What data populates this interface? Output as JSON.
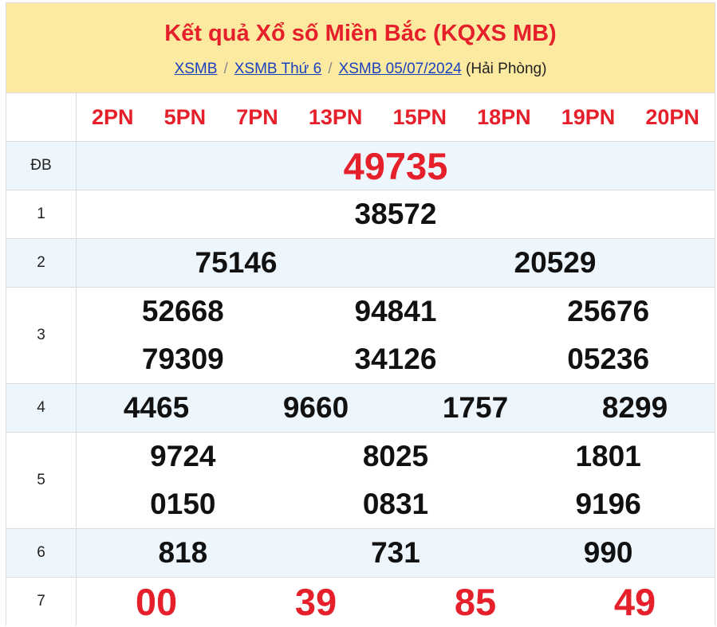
{
  "header": {
    "title": "Kết quả Xổ số Miền Bắc (KQXS MB)",
    "breadcrumb": [
      {
        "label": "XSMB"
      },
      {
        "label": "XSMB Thứ 6"
      },
      {
        "label": "XSMB 05/07/2024"
      }
    ],
    "region": "(Hải Phòng)"
  },
  "codes": [
    "2PN",
    "5PN",
    "7PN",
    "13PN",
    "15PN",
    "18PN",
    "19PN",
    "20PN"
  ],
  "prizes": [
    {
      "label": "ĐB",
      "lines": [
        [
          "49735"
        ]
      ]
    },
    {
      "label": "1",
      "lines": [
        [
          "38572"
        ]
      ]
    },
    {
      "label": "2",
      "lines": [
        [
          "75146",
          "20529"
        ]
      ]
    },
    {
      "label": "3",
      "lines": [
        [
          "52668",
          "94841",
          "25676"
        ],
        [
          "79309",
          "34126",
          "05236"
        ]
      ]
    },
    {
      "label": "4",
      "lines": [
        [
          "4465",
          "9660",
          "1757",
          "8299"
        ]
      ]
    },
    {
      "label": "5",
      "lines": [
        [
          "9724",
          "8025",
          "1801"
        ],
        [
          "0150",
          "0831",
          "9196"
        ]
      ]
    },
    {
      "label": "6",
      "lines": [
        [
          "818",
          "731",
          "990"
        ]
      ]
    },
    {
      "label": "7",
      "lines": [
        [
          "00",
          "39",
          "85",
          "49"
        ]
      ]
    }
  ],
  "colors": {
    "accent": "#e5202a",
    "header_bg": "#fdeaa1",
    "alt_row": "#eef6fd",
    "link": "#1a3fbf"
  }
}
